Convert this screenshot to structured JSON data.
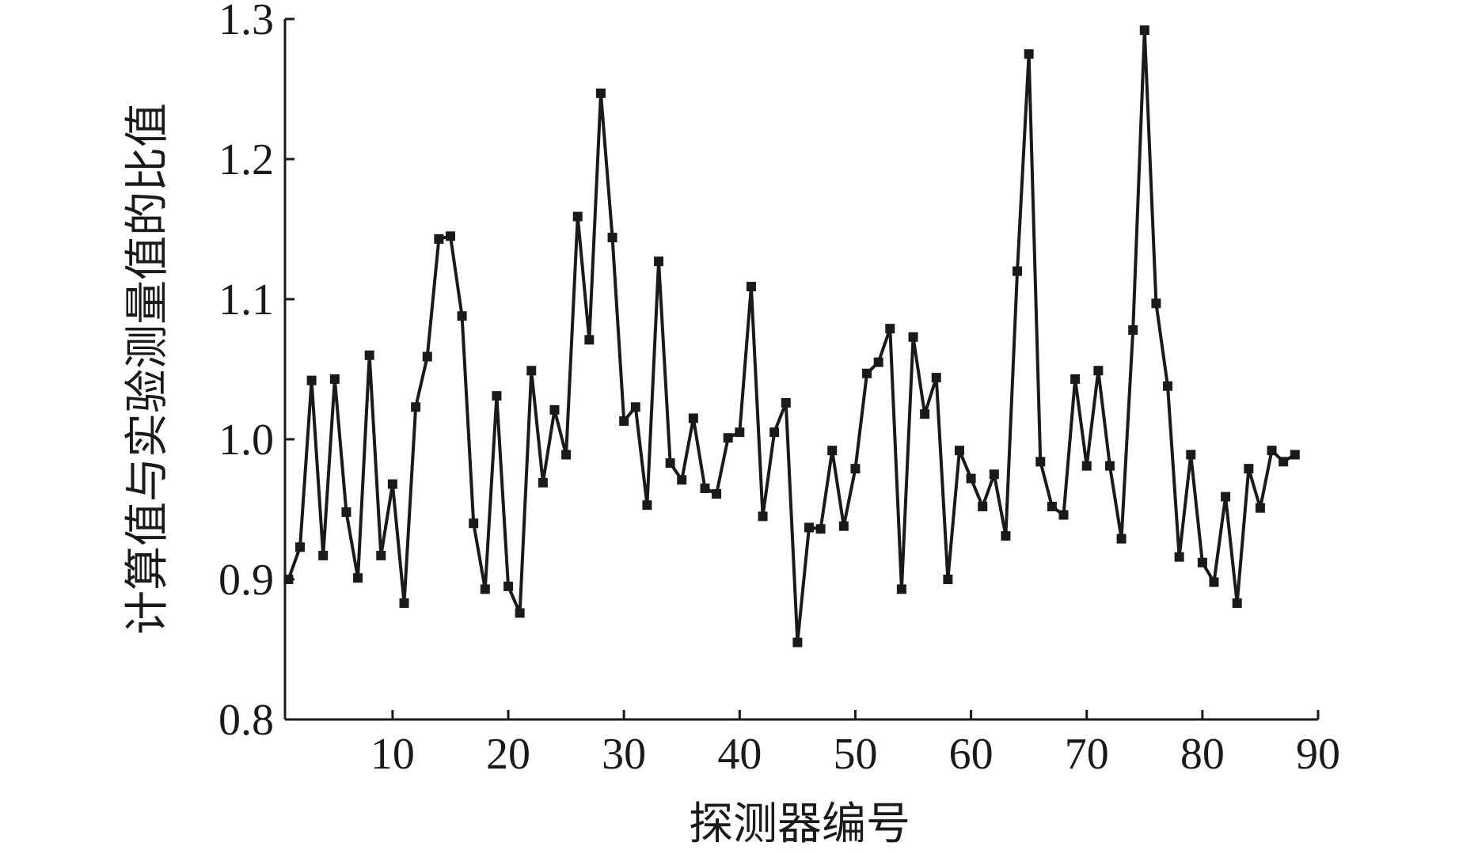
{
  "chart_data": {
    "type": "line",
    "x_label": "探测器编号",
    "y_label": "计算值与实验测量值的比值",
    "x": [
      1,
      2,
      3,
      4,
      5,
      6,
      7,
      8,
      9,
      10,
      11,
      12,
      13,
      14,
      15,
      16,
      17,
      18,
      19,
      20,
      21,
      22,
      23,
      24,
      25,
      26,
      27,
      28,
      29,
      30,
      31,
      32,
      33,
      34,
      35,
      36,
      37,
      38,
      39,
      40,
      41,
      42,
      43,
      44,
      45,
      46,
      47,
      48,
      49,
      50,
      51,
      52,
      53,
      54,
      55,
      56,
      57,
      58,
      59,
      60,
      61,
      62,
      63,
      64,
      65,
      66,
      67,
      68,
      69,
      70,
      71,
      72,
      73,
      74,
      75,
      76,
      77,
      78,
      79,
      80,
      81,
      82,
      83,
      84,
      85,
      86,
      87,
      88
    ],
    "series": [
      {
        "color": "#1a1a1a",
        "values": [
          0.9,
          0.923,
          1.042,
          0.917,
          1.043,
          0.948,
          0.901,
          1.06,
          0.917,
          0.968,
          0.883,
          1.023,
          1.059,
          1.143,
          1.145,
          1.088,
          0.94,
          0.893,
          1.031,
          0.895,
          0.876,
          1.049,
          0.969,
          1.021,
          0.989,
          1.159,
          1.071,
          1.247,
          1.144,
          1.013,
          1.023,
          0.953,
          1.127,
          0.983,
          0.971,
          1.015,
          0.965,
          0.961,
          1.001,
          1.005,
          1.109,
          0.945,
          1.005,
          1.026,
          0.855,
          0.937,
          0.936,
          0.992,
          0.938,
          0.979,
          1.047,
          1.055,
          1.079,
          0.893,
          1.073,
          1.018,
          1.044,
          0.9,
          0.992,
          0.972,
          0.952,
          0.975,
          0.931,
          1.12,
          1.275,
          0.984,
          0.952,
          0.946,
          1.043,
          0.981,
          1.049,
          0.981,
          0.929,
          1.078,
          1.292,
          1.097,
          1.038,
          0.916,
          0.989,
          0.912,
          0.898,
          0.959,
          0.883,
          0.979,
          0.951,
          0.992,
          0.984,
          0.989
        ]
      }
    ],
    "xlim": [
      0.7,
      90
    ],
    "xticks": [
      10,
      20,
      30,
      40,
      50,
      60,
      70,
      80,
      90
    ],
    "ylim": [
      0.8,
      1.3
    ],
    "yticks": [
      0.8,
      0.9,
      {
        "value": 1.0,
        "label": "1.0"
      },
      1.1,
      1.2,
      1.3
    ]
  }
}
